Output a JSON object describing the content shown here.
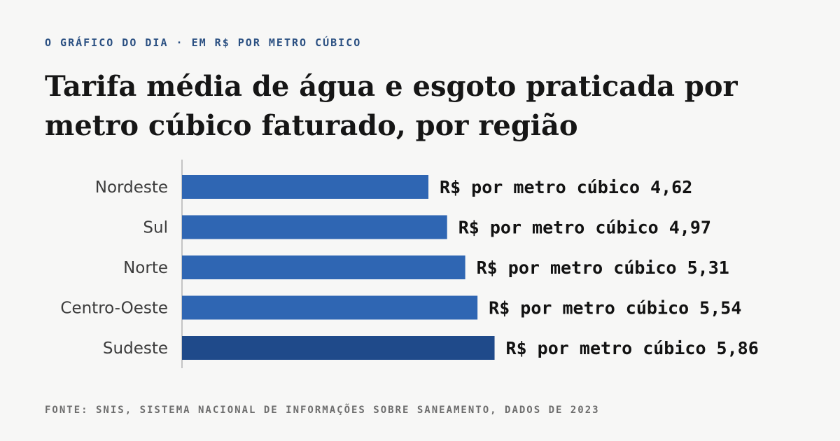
{
  "header": {
    "kicker": "O GRÁFICO DO DIA · EM R$ POR METRO CÚBICO",
    "title": "Tarifa média de água e esgoto praticada por metro cúbico faturado, por região"
  },
  "footer": {
    "source": "FONTE: SNIS, SISTEMA NACIONAL DE INFORMAÇÕES SOBRE SANEAMENTO, DADOS DE 2023"
  },
  "colors": {
    "bar": "#2f66b3",
    "bar_highlight": "#1f4a8a",
    "axis": "#c4c4c4"
  },
  "chart_data": {
    "type": "bar",
    "orientation": "horizontal",
    "categories": [
      "Nordeste",
      "Sul",
      "Norte",
      "Centro-Oeste",
      "Sudeste"
    ],
    "values": [
      4.62,
      4.97,
      5.31,
      5.54,
      5.86
    ],
    "value_labels": [
      "R$ por metro cúbico 4,62",
      "R$ por metro cúbico 4,97",
      "R$ por metro cúbico 5,31",
      "R$ por metro cúbico 5,54",
      "R$ por metro cúbico 5,86"
    ],
    "highlighted_category": "Sudeste",
    "title": "Tarifa média de água e esgoto praticada por metro cúbico faturado, por região",
    "xlabel": "",
    "ylabel": "",
    "xlim": [
      0,
      6.5
    ],
    "grid": false,
    "legend": "none"
  }
}
